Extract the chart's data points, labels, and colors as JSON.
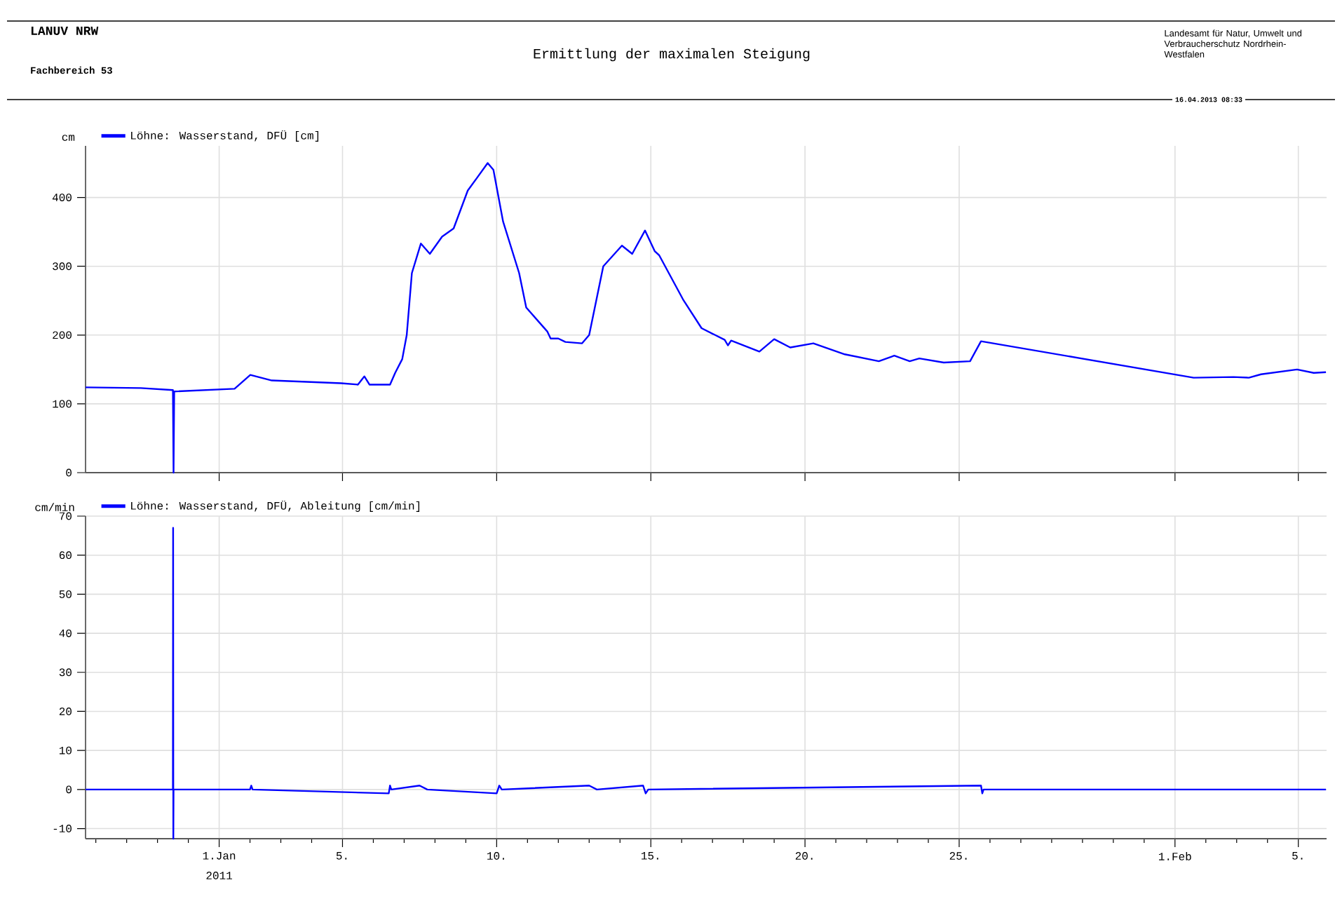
{
  "chart_data": [
    {
      "type": "line",
      "title": "Ermittlung der maximalen Steigung",
      "ylabel": "cm",
      "annotations": [
        "LANUV NRW",
        "Fachbereich 53",
        "Landesamt für Natur, Umwelt und Verbraucherschutz Nordrhein-Westfalen",
        "16.04.2013 08:33"
      ],
      "series": [
        {
          "name": "Löhne: Wasserstand, DFÜ [cm]",
          "color": "#0000ff",
          "x": [
            "2010-12-27T16:00",
            "2010-12-29T11:00",
            "2010-12-30T12:00",
            "2010-12-30T12:30",
            "2010-12-30T13:00",
            "2011-01-01T12:00",
            "2011-01-02T00:15",
            "2011-01-02T17:00",
            "2011-01-04T23:00",
            "2011-01-05T12:00",
            "2011-01-05T17:00",
            "2011-01-05T21:00",
            "2011-01-06T13:00",
            "2011-01-06T17:00",
            "2011-01-06T22:30",
            "2011-01-07T02:00",
            "2011-01-07T06:00",
            "2011-01-07T13:00",
            "2011-01-07T20:00",
            "2011-01-08T05:30",
            "2011-01-08T14:30",
            "2011-01-09T01:30",
            "2011-01-09T08:30",
            "2011-01-09T17:00",
            "2011-01-09T21:30",
            "2011-01-10T05:00",
            "2011-01-10T17:30",
            "2011-01-10T23:00",
            "2011-01-11T15:30",
            "2011-01-11T18:00",
            "2011-01-12T00:00",
            "2011-01-12T05:30",
            "2011-01-12T18:30",
            "2011-01-13T00:00",
            "2011-01-13T11:00",
            "2011-01-14T01:30",
            "2011-01-14T09:30",
            "2011-01-14T19:30",
            "2011-01-15T03:00",
            "2011-01-15T06:30",
            "2011-01-16T01:00",
            "2011-01-16T15:30",
            "2011-01-17T09:30",
            "2011-01-17T12:00",
            "2011-01-17T14:30",
            "2011-01-18T12:30",
            "2011-01-19T00:00",
            "2011-01-19T12:30",
            "2011-01-20T06:30",
            "2011-01-21T07:00",
            "2011-01-22T09:30",
            "2011-01-22T21:30",
            "2011-01-23T09:30",
            "2011-01-23T17:00",
            "2011-01-24T12:00",
            "2011-01-25T08:30",
            "2011-01-25T17:00",
            "2011-02-01T14:30",
            "2011-02-02T21:30",
            "2011-02-03T09:30",
            "2011-02-03T19:00",
            "2011-02-04T23:00",
            "2011-02-05T12:00",
            "2011-02-05T21:30"
          ],
          "values": [
            124,
            123,
            120,
            0,
            118,
            122,
            142,
            134,
            130,
            128,
            140,
            128,
            128,
            145,
            165,
            200,
            290,
            333,
            318,
            343,
            355,
            410,
            428,
            450,
            440,
            365,
            290,
            240,
            205,
            195,
            195,
            190,
            188,
            200,
            300,
            330,
            318,
            352,
            322,
            316,
            252,
            210,
            193,
            185,
            192,
            176,
            194,
            182,
            188,
            172,
            162,
            170,
            162,
            166,
            160,
            162,
            191,
            138,
            139,
            138,
            143,
            150,
            145,
            146
          ]
        }
      ],
      "xlim": [
        "2010-12-27T16:00",
        "2011-02-05T22:00"
      ],
      "xticks": [
        {
          "value": "2011-01-01",
          "label": null
        },
        {
          "value": "2011-01-05",
          "label": null
        },
        {
          "value": "2011-01-10",
          "label": null
        },
        {
          "value": "2011-01-15",
          "label": null
        },
        {
          "value": "2011-01-20",
          "label": null
        },
        {
          "value": "2011-01-25",
          "label": null
        },
        {
          "value": "2011-02-01",
          "label": null
        },
        {
          "value": "2011-02-05",
          "label": null
        }
      ],
      "ylim": [
        0,
        475
      ],
      "yticks": [
        0,
        100,
        200,
        300,
        400
      ],
      "grid": true,
      "legend": "top left",
      "tick_labels": "y",
      "marker": "none",
      "line_style": "solid"
    },
    {
      "type": "line",
      "ylabel": "cm/min",
      "xlabel": "2011",
      "series": [
        {
          "name": "Löhne: Wasserstand, DFÜ, Ableitung [cm/min]",
          "color": "#0000ff",
          "x": [
            "2010-12-27T16:00",
            "2010-12-30T12:00",
            "2010-12-30T12:10",
            "2010-12-30T12:20",
            "2010-12-30T12:30",
            "2011-01-02T00:00",
            "2011-01-02T01:00",
            "2011-01-02T02:00",
            "2011-01-06T12:00",
            "2011-01-06T13:00",
            "2011-01-06T14:00",
            "2011-01-07T12:00",
            "2011-01-07T18:00",
            "2011-01-10T00:00",
            "2011-01-10T02:00",
            "2011-01-10T04:00",
            "2011-01-13T00:00",
            "2011-01-13T06:00",
            "2011-01-14T18:00",
            "2011-01-14T20:00",
            "2011-01-14T22:00",
            "2011-01-25T17:00",
            "2011-01-25T18:00",
            "2011-01-25T19:00",
            "2011-02-05T21:30"
          ],
          "values": [
            0,
            0,
            67,
            -12.6,
            0,
            0,
            1,
            0,
            -1,
            1,
            0,
            1,
            0,
            -1,
            1,
            0,
            1,
            0,
            1,
            -1,
            0,
            1,
            -1,
            0,
            0
          ]
        }
      ],
      "xlim": [
        "2010-12-27T16:00",
        "2011-02-05T22:00"
      ],
      "xticks": [
        {
          "value": "2010-12-28",
          "label": null
        },
        {
          "value": "2010-12-29",
          "label": null
        },
        {
          "value": "2010-12-30",
          "label": null
        },
        {
          "value": "2010-12-31",
          "label": null
        },
        {
          "value": "2011-01-01",
          "label": "1.Jan"
        },
        {
          "value": "2011-01-02",
          "label": null
        },
        {
          "value": "2011-01-03",
          "label": null
        },
        {
          "value": "2011-01-04",
          "label": null
        },
        {
          "value": "2011-01-05",
          "label": "5."
        },
        {
          "value": "2011-01-06",
          "label": null
        },
        {
          "value": "2011-01-07",
          "label": null
        },
        {
          "value": "2011-01-08",
          "label": null
        },
        {
          "value": "2011-01-09",
          "label": null
        },
        {
          "value": "2011-01-10",
          "label": "10."
        },
        {
          "value": "2011-01-11",
          "label": null
        },
        {
          "value": "2011-01-12",
          "label": null
        },
        {
          "value": "2011-01-13",
          "label": null
        },
        {
          "value": "2011-01-14",
          "label": null
        },
        {
          "value": "2011-01-15",
          "label": "15."
        },
        {
          "value": "2011-01-16",
          "label": null
        },
        {
          "value": "2011-01-17",
          "label": null
        },
        {
          "value": "2011-01-18",
          "label": null
        },
        {
          "value": "2011-01-19",
          "label": null
        },
        {
          "value": "2011-01-20",
          "label": "20."
        },
        {
          "value": "2011-01-21",
          "label": null
        },
        {
          "value": "2011-01-22",
          "label": null
        },
        {
          "value": "2011-01-23",
          "label": null
        },
        {
          "value": "2011-01-24",
          "label": null
        },
        {
          "value": "2011-01-25",
          "label": "25."
        },
        {
          "value": "2011-01-26",
          "label": null
        },
        {
          "value": "2011-01-27",
          "label": null
        },
        {
          "value": "2011-01-28",
          "label": null
        },
        {
          "value": "2011-01-29",
          "label": null
        },
        {
          "value": "2011-01-30",
          "label": null
        },
        {
          "value": "2011-01-31",
          "label": null
        },
        {
          "value": "2011-02-01",
          "label": "1.Feb"
        },
        {
          "value": "2011-02-02",
          "label": null
        },
        {
          "value": "2011-02-03",
          "label": null
        },
        {
          "value": "2011-02-04",
          "label": null
        },
        {
          "value": "2011-02-05",
          "label": "5."
        }
      ],
      "ylim": [
        -12.6,
        70
      ],
      "yticks": [
        -10,
        0,
        10,
        20,
        30,
        40,
        50,
        60,
        70
      ],
      "grid": true,
      "legend": "top left",
      "marker": "none",
      "line_style": "solid"
    }
  ]
}
